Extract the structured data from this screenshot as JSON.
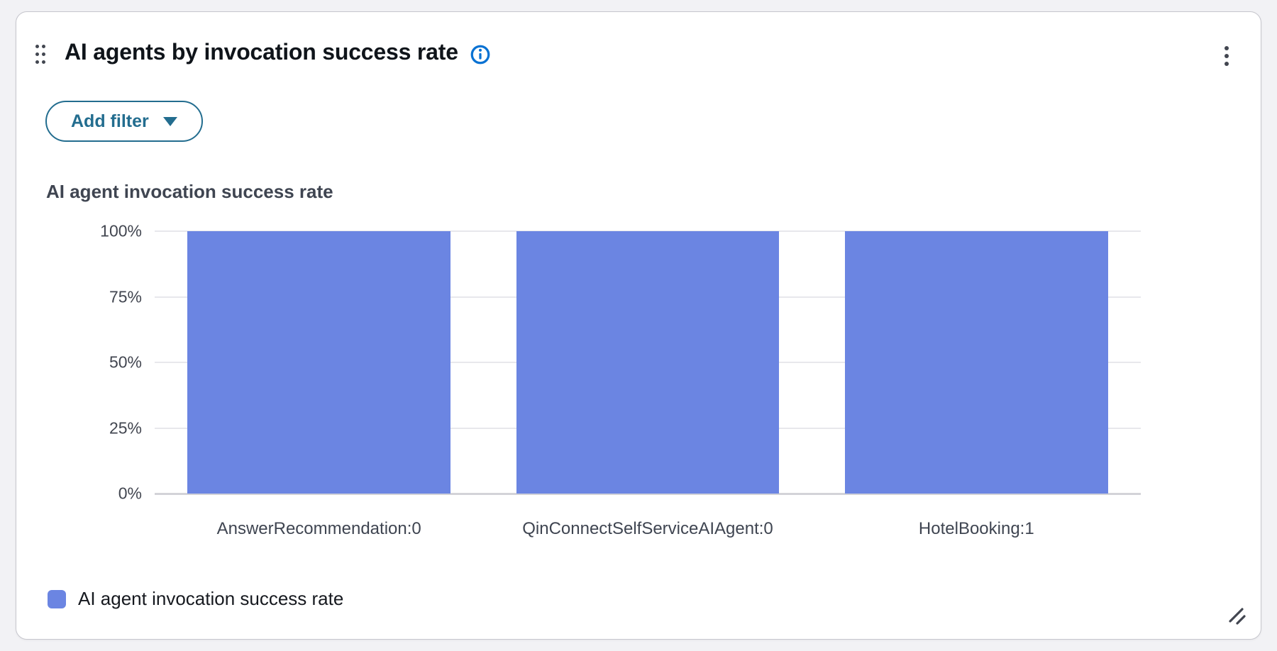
{
  "card": {
    "title": "AI agents by invocation success rate",
    "add_filter": {
      "label": "Add filter"
    }
  },
  "chart_data": {
    "type": "bar",
    "title": "AI agent invocation success rate",
    "categories": [
      "AnswerRecommendation:0",
      "QinConnectSelfServiceAIAgent:0",
      "HotelBooking:1"
    ],
    "values": [
      100,
      100,
      100
    ],
    "value_unit": "%",
    "xlabel": "",
    "ylabel": "",
    "ylim": [
      0,
      100
    ],
    "yticks": [
      {
        "label": "0%",
        "value": 0
      },
      {
        "label": "25%",
        "value": 25
      },
      {
        "label": "50%",
        "value": 50
      },
      {
        "label": "75%",
        "value": 75
      },
      {
        "label": "100%",
        "value": 100
      }
    ],
    "grid": true,
    "bar_color": "#6b85e2",
    "legend": [
      {
        "label": "AI agent invocation success rate",
        "color": "#6b85e2"
      }
    ],
    "legend_position": "bottom-left"
  },
  "icons": {
    "drag_handle": "drag-handle-dots",
    "info": "info-circle",
    "kebab": "vertical-ellipsis-menu",
    "caret": "caret-down-filled",
    "resize": "diagonal-resize"
  },
  "colors": {
    "bar": "#6b85e2",
    "accent_teal": "#236d8f",
    "info_blue": "#0972d3",
    "title_text": "#0f141a",
    "axis_text": "#424650",
    "gridline": "#e8e8ec",
    "axis_line": "#d3d3d8",
    "card_border": "#c6c6cd",
    "page_background": "#f2f2f5"
  }
}
